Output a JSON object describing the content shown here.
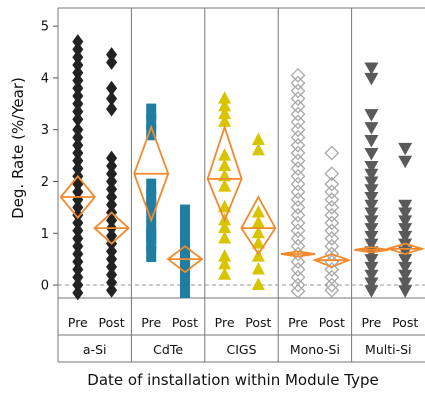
{
  "chart_data": {
    "type": "scatter",
    "title": "",
    "ylabel": "Deg. Rate (%/Year)",
    "xlabel": "Date of installation within Module Type",
    "ylim": [
      -0.25,
      5.35
    ],
    "yticks": [
      0,
      1,
      2,
      3,
      4,
      5
    ],
    "reference_line": {
      "y": 0,
      "style": "dashed"
    },
    "subgroup_labels": [
      "Pre",
      "Post"
    ],
    "groups": [
      {
        "name": "a-Si",
        "marker": "diamond-filled",
        "color": "#222222",
        "pre": {
          "median": 1.7,
          "ci": [
            1.3,
            2.1
          ],
          "values": [
            4.7,
            4.55,
            4.4,
            4.25,
            4.1,
            3.95,
            3.8,
            3.65,
            3.5,
            3.35,
            3.2,
            3.0,
            2.85,
            2.7,
            2.55,
            2.4,
            2.25,
            2.1,
            1.95,
            1.8,
            1.65,
            1.5,
            1.35,
            1.2,
            1.05,
            0.9,
            0.75,
            0.6,
            0.45,
            0.3,
            0.15,
            0.0,
            -0.15
          ]
        },
        "post": {
          "median": 1.1,
          "ci": [
            0.8,
            1.4
          ],
          "values": [
            4.45,
            4.3,
            3.8,
            3.6,
            3.4,
            2.45,
            2.3,
            2.15,
            2.0,
            1.85,
            1.7,
            1.55,
            1.4,
            1.25,
            1.1,
            0.95,
            0.8,
            0.65,
            0.5,
            0.35,
            0.2,
            0.05,
            -0.1
          ]
        }
      },
      {
        "name": "CdTe",
        "marker": "rect-filled",
        "color": "#1f7ea1",
        "pre": {
          "median": 2.15,
          "ci": [
            1.25,
            3.05
          ],
          "values": [
            3.35,
            3.15,
            2.95,
            1.9,
            1.7,
            1.55,
            1.35,
            1.1,
            0.95,
            0.8,
            0.6
          ]
        },
        "post": {
          "median": 0.5,
          "ci": [
            0.25,
            0.75
          ],
          "values": [
            1.4,
            1.15,
            0.9,
            0.7,
            0.5,
            0.3,
            0.1,
            -0.1
          ]
        }
      },
      {
        "name": "CIGS",
        "marker": "triangle-up-filled",
        "color": "#d9c400",
        "pre": {
          "median": 2.05,
          "ci": [
            1.25,
            3.05
          ],
          "values": [
            3.6,
            3.45,
            3.3,
            3.15,
            2.5,
            2.3,
            2.1,
            1.9,
            1.5,
            1.25,
            1.1,
            0.9,
            0.55,
            0.4,
            0.2
          ]
        },
        "post": {
          "median": 1.1,
          "ci": [
            0.6,
            1.7
          ],
          "values": [
            2.8,
            2.6,
            1.4,
            1.2,
            1.0,
            0.8,
            0.55,
            0.3,
            0.0
          ]
        }
      },
      {
        "name": "Mono-Si",
        "marker": "diamond-open",
        "color": "#a8a8a8",
        "pre": {
          "median": 0.6,
          "ci": [
            0.55,
            0.65
          ],
          "values": [
            4.05,
            3.9,
            3.75,
            3.6,
            3.45,
            3.3,
            3.15,
            3.0,
            2.85,
            2.7,
            2.55,
            2.4,
            2.25,
            2.1,
            1.95,
            1.8,
            1.65,
            1.5,
            1.35,
            1.2,
            1.05,
            0.9,
            0.75,
            0.6,
            0.45,
            0.3,
            0.15,
            0.0,
            -0.12
          ]
        },
        "post": {
          "median": 0.48,
          "ci": [
            0.35,
            0.6
          ],
          "values": [
            2.55,
            2.15,
            1.95,
            1.8,
            1.65,
            1.5,
            1.35,
            1.2,
            1.05,
            0.9,
            0.75,
            0.6,
            0.45,
            0.3,
            0.15,
            0.0,
            -0.1
          ]
        }
      },
      {
        "name": "Multi-Si",
        "marker": "triangle-down-filled",
        "color": "#5a5a5a",
        "pre": {
          "median": 0.68,
          "ci": [
            0.63,
            0.73
          ],
          "values": [
            4.2,
            4.0,
            3.3,
            3.05,
            2.8,
            2.55,
            2.3,
            2.15,
            2.0,
            1.85,
            1.7,
            1.55,
            1.4,
            1.25,
            1.1,
            0.95,
            0.8,
            0.65,
            0.5,
            0.35,
            0.2,
            0.05,
            -0.1
          ]
        },
        "post": {
          "median": 0.7,
          "ci": [
            0.6,
            0.8
          ],
          "values": [
            2.65,
            2.4,
            1.55,
            1.4,
            1.25,
            1.1,
            0.95,
            0.8,
            0.65,
            0.5,
            0.35,
            0.2,
            0.05,
            -0.1
          ]
        }
      }
    ],
    "median_marker": {
      "color": "#f08a2c",
      "shape": "diamond-open-with-median-line"
    }
  }
}
